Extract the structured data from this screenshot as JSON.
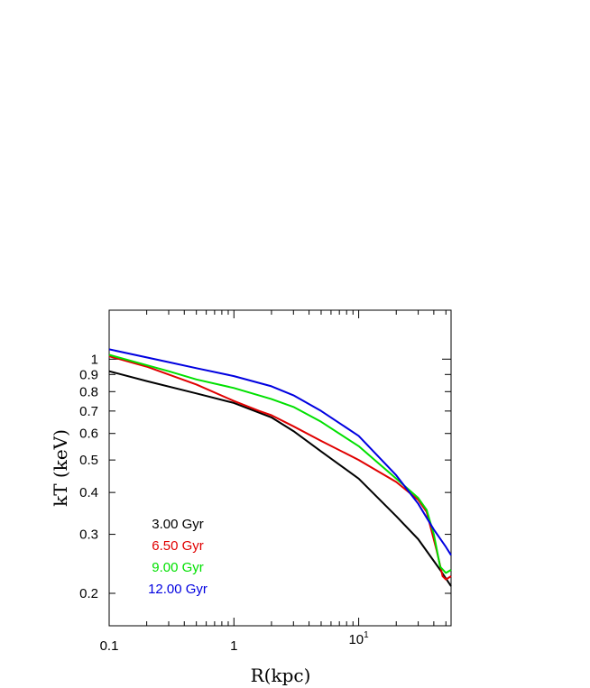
{
  "chart_data": {
    "type": "line",
    "xlabel": "R(kpc)",
    "ylabel": "kT (keV)",
    "xscale": "log",
    "yscale": "log",
    "xlim": [
      0.1,
      55
    ],
    "ylim": [
      0.16,
      1.4
    ],
    "grid": false,
    "legend_placement": "bottom-left",
    "x_ticks": [
      {
        "value": 0.1,
        "label": "0.1"
      },
      {
        "value": 1,
        "label": "1"
      },
      {
        "value": 10,
        "label": "10",
        "sup": "1"
      }
    ],
    "y_ticks": [
      {
        "value": 0.2,
        "label": "0.2"
      },
      {
        "value": 0.3,
        "label": "0.3"
      },
      {
        "value": 0.4,
        "label": "0.4"
      },
      {
        "value": 0.5,
        "label": "0.5"
      },
      {
        "value": 0.6,
        "label": "0.6"
      },
      {
        "value": 0.7,
        "label": "0.7"
      },
      {
        "value": 0.8,
        "label": "0.8"
      },
      {
        "value": 0.9,
        "label": "0.9"
      },
      {
        "value": 1,
        "label": "1"
      }
    ],
    "series": [
      {
        "name": "3.00 Gyr",
        "color": "#000000",
        "points": [
          [
            0.1,
            0.92
          ],
          [
            0.2,
            0.86
          ],
          [
            0.5,
            0.79
          ],
          [
            1,
            0.74
          ],
          [
            2,
            0.67
          ],
          [
            3,
            0.61
          ],
          [
            5,
            0.53
          ],
          [
            10,
            0.44
          ],
          [
            20,
            0.34
          ],
          [
            30,
            0.29
          ],
          [
            45,
            0.235
          ],
          [
            55,
            0.21
          ]
        ]
      },
      {
        "name": "6.50 Gyr",
        "color": "#e00000",
        "points": [
          [
            0.1,
            1.02
          ],
          [
            0.2,
            0.95
          ],
          [
            0.5,
            0.84
          ],
          [
            1,
            0.75
          ],
          [
            1.6,
            0.7
          ],
          [
            2,
            0.68
          ],
          [
            3,
            0.63
          ],
          [
            5,
            0.57
          ],
          [
            10,
            0.5
          ],
          [
            20,
            0.43
          ],
          [
            30,
            0.38
          ],
          [
            35,
            0.35
          ],
          [
            42,
            0.27
          ],
          [
            47,
            0.225
          ],
          [
            50,
            0.22
          ],
          [
            55,
            0.225
          ]
        ]
      },
      {
        "name": "9.00 Gyr",
        "color": "#00e000",
        "points": [
          [
            0.1,
            1.03
          ],
          [
            0.3,
            0.92
          ],
          [
            0.5,
            0.87
          ],
          [
            1,
            0.82
          ],
          [
            2,
            0.76
          ],
          [
            3,
            0.72
          ],
          [
            5,
            0.65
          ],
          [
            10,
            0.55
          ],
          [
            20,
            0.44
          ],
          [
            30,
            0.385
          ],
          [
            35,
            0.355
          ],
          [
            40,
            0.3
          ],
          [
            45,
            0.24
          ],
          [
            50,
            0.23
          ],
          [
            55,
            0.235
          ]
        ]
      },
      {
        "name": "12.00 Gyr",
        "color": "#0000e0",
        "points": [
          [
            0.1,
            1.07
          ],
          [
            0.3,
            0.98
          ],
          [
            0.5,
            0.94
          ],
          [
            1,
            0.89
          ],
          [
            2,
            0.83
          ],
          [
            3,
            0.78
          ],
          [
            5,
            0.7
          ],
          [
            10,
            0.59
          ],
          [
            20,
            0.45
          ],
          [
            30,
            0.37
          ],
          [
            40,
            0.31
          ],
          [
            50,
            0.275
          ],
          [
            55,
            0.26
          ]
        ]
      }
    ]
  }
}
